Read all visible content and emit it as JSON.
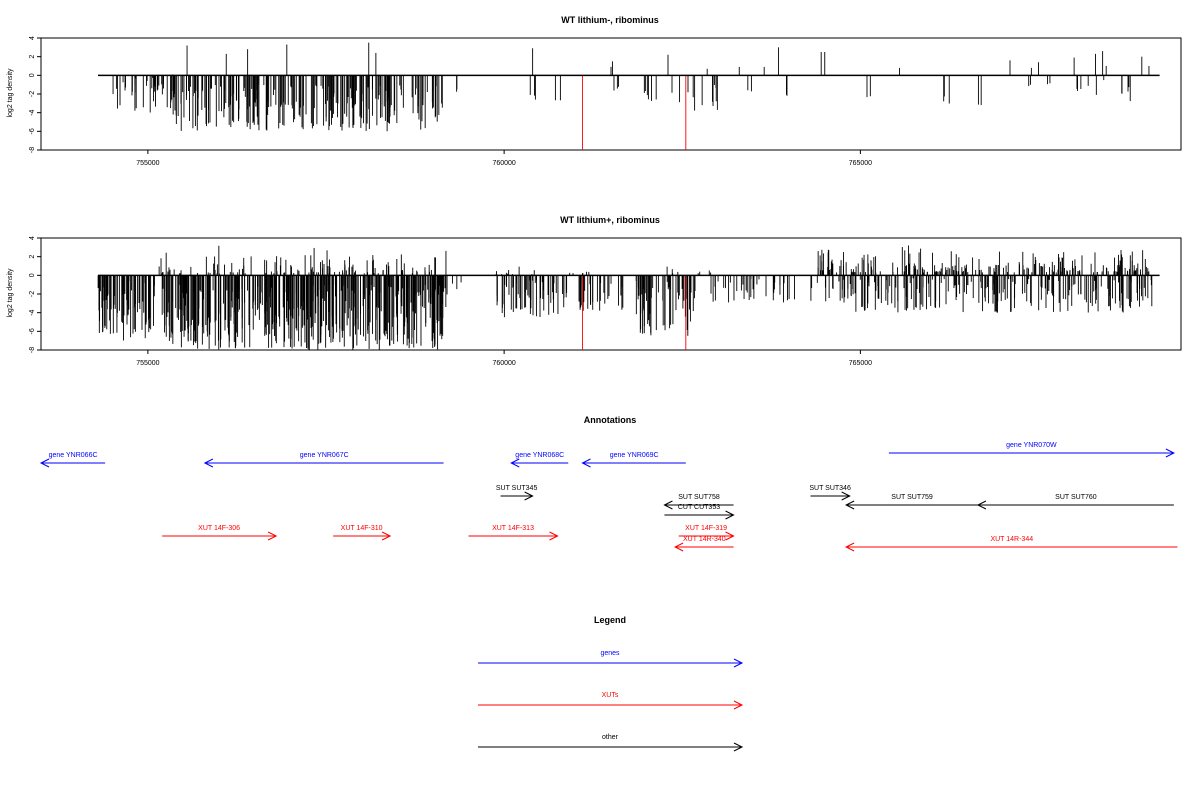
{
  "colors": {
    "gene": "#0000ff",
    "xut": "#ff0000",
    "other": "#000000",
    "highlight": "#ff0000",
    "bar": "#000000"
  },
  "chart_data": [
    {
      "type": "bar",
      "title": "WT lithium-, ribominus",
      "ylabel": "log2 tag density",
      "xlim": [
        753500,
        769500
      ],
      "ylim": [
        -8,
        4
      ],
      "yticks": [
        4,
        2,
        0,
        -2,
        -4,
        -6,
        -8
      ],
      "xticks": [
        755000,
        760000,
        765000
      ],
      "xtick_labels": [
        "755000",
        "760000",
        "765000"
      ],
      "axis_start": 754300,
      "axis_end": 769200,
      "positive_bars": [
        [
          755550,
          3.2
        ],
        [
          755350,
          0.1
        ],
        [
          756100,
          2.3
        ],
        [
          756400,
          2.8
        ],
        [
          756950,
          3.3
        ],
        [
          758100,
          3.5
        ],
        [
          758200,
          2.4
        ],
        [
          760400,
          2.9
        ],
        [
          761500,
          0.9
        ],
        [
          761520,
          1.5
        ],
        [
          762300,
          2.2
        ],
        [
          762850,
          0.7
        ],
        [
          763300,
          0.9
        ],
        [
          763650,
          0.9
        ],
        [
          763850,
          3.0
        ],
        [
          764450,
          2.5
        ],
        [
          764500,
          2.5
        ],
        [
          765550,
          0.8
        ],
        [
          767100,
          1.6
        ],
        [
          767400,
          0.8
        ],
        [
          767500,
          1.4
        ],
        [
          768000,
          1.9
        ],
        [
          768300,
          2.3
        ],
        [
          768400,
          2.6
        ],
        [
          768450,
          1.0
        ],
        [
          768950,
          2.0
        ],
        [
          769050,
          1.0
        ]
      ],
      "negative_clusters": [
        [
          754400,
          755400,
          0.25,
          4.0,
          35
        ],
        [
          755300,
          759150,
          1.0,
          6.0,
          240
        ],
        [
          759300,
          759350,
          1.5,
          1.8,
          2
        ],
        [
          760350,
          760450,
          2.0,
          2.6,
          3
        ],
        [
          760700,
          760800,
          2.5,
          3.0,
          2
        ],
        [
          761500,
          761650,
          1.0,
          2.0,
          3
        ],
        [
          761900,
          762150,
          1.5,
          3.0,
          6
        ],
        [
          762350,
          763000,
          1.0,
          3.8,
          12
        ],
        [
          763400,
          763500,
          1.5,
          1.8,
          2
        ],
        [
          763900,
          764000,
          2.0,
          2.2,
          2
        ],
        [
          765050,
          765150,
          1.8,
          2.4,
          2
        ],
        [
          766100,
          766250,
          2.0,
          3.6,
          3
        ],
        [
          766650,
          766700,
          3.0,
          3.2,
          2
        ],
        [
          767350,
          767400,
          1.0,
          1.2,
          2
        ],
        [
          767600,
          767700,
          0.6,
          1.2,
          2
        ],
        [
          768000,
          768450,
          0.4,
          2.4,
          6
        ],
        [
          768600,
          768800,
          1.0,
          3.3,
          5
        ]
      ],
      "highlight_bars": [
        [
          761100,
          -8.0
        ],
        [
          762550,
          -8.0
        ]
      ]
    },
    {
      "type": "bar",
      "title": "WT lithium+, ribominus",
      "ylabel": "log2 tag density",
      "xlim": [
        753500,
        769500
      ],
      "ylim": [
        -8,
        4
      ],
      "yticks": [
        4,
        2,
        0,
        -2,
        -4,
        -6,
        -8
      ],
      "xticks": [
        755000,
        760000,
        765000
      ],
      "xtick_labels": [
        "755000",
        "760000",
        "765000"
      ],
      "axis_start": 754300,
      "axis_end": 769200,
      "positive_clusters": [
        [
          755150,
          759200,
          0.2,
          3.4,
          120
        ],
        [
          759700,
          760500,
          0.1,
          1.2,
          12
        ],
        [
          760900,
          761200,
          0.2,
          1.0,
          6
        ],
        [
          762000,
          763000,
          0.2,
          1.0,
          8
        ],
        [
          764400,
          769100,
          0.3,
          3.3,
          240
        ]
      ],
      "negative_clusters": [
        [
          754300,
          755100,
          0.5,
          7.0,
          80
        ],
        [
          755200,
          759200,
          1.0,
          8.0,
          450
        ],
        [
          759250,
          759400,
          0.5,
          1.5,
          3
        ],
        [
          759800,
          760900,
          0.5,
          4.5,
          60
        ],
        [
          761050,
          761700,
          0.5,
          4.0,
          30
        ],
        [
          761800,
          762700,
          0.5,
          6.5,
          60
        ],
        [
          762850,
          764400,
          0.3,
          3.0,
          40
        ],
        [
          764500,
          769100,
          0.3,
          4.0,
          220
        ]
      ],
      "highlight_bars": [
        [
          761100,
          -8.0
        ],
        [
          762550,
          -8.0
        ]
      ]
    }
  ],
  "annotations": {
    "title": "Annotations",
    "genes": [
      {
        "label": "gene YNR066C",
        "start": 754400,
        "end": 753500,
        "lane": 0
      },
      {
        "label": "gene YNR067C",
        "start": 759150,
        "end": 755800,
        "lane": 0
      },
      {
        "label": "gene YNR068C",
        "start": 760900,
        "end": 760100,
        "lane": 0
      },
      {
        "label": "gene YNR069C",
        "start": 762550,
        "end": 761100,
        "lane": 0
      },
      {
        "label": "gene YNR070W",
        "start": 765400,
        "end": 769400,
        "lane": 1
      }
    ],
    "other": [
      {
        "label": "SUT SUT345",
        "start": 759950,
        "end": 760400,
        "lane": 2
      },
      {
        "label": "SUT SUT346",
        "start": 764300,
        "end": 764850,
        "lane": 2
      },
      {
        "label": "SUT SUT758",
        "start": 763220,
        "end": 762250,
        "lane": 3
      },
      {
        "label": "SUT SUT759",
        "start": 766650,
        "end": 764800,
        "lane": 3
      },
      {
        "label": "SUT SUT760",
        "start": 769400,
        "end": 766650,
        "lane": 3
      },
      {
        "label": "CUT CUT353",
        "start": 762250,
        "end": 763220,
        "lane": 4
      }
    ],
    "xuts": [
      {
        "label": "XUT 14F-306",
        "start": 755200,
        "end": 756800,
        "lane": 5
      },
      {
        "label": "XUT 14F-310",
        "start": 757600,
        "end": 758400,
        "lane": 5
      },
      {
        "label": "XUT 14F-313",
        "start": 759500,
        "end": 760750,
        "lane": 5
      },
      {
        "label": "XUT 14F-319",
        "start": 762450,
        "end": 763220,
        "lane": 5
      },
      {
        "label": "XUT 14R-340",
        "start": 763220,
        "end": 762400,
        "lane": 6
      },
      {
        "label": "XUT 14R-344",
        "start": 769450,
        "end": 764800,
        "lane": 6
      }
    ]
  },
  "legend": {
    "title": "Legend",
    "items": [
      {
        "label": "genes",
        "color": "#0000ff"
      },
      {
        "label": "XUTs",
        "color": "#ff0000"
      },
      {
        "label": "other",
        "color": "#000000"
      }
    ]
  }
}
